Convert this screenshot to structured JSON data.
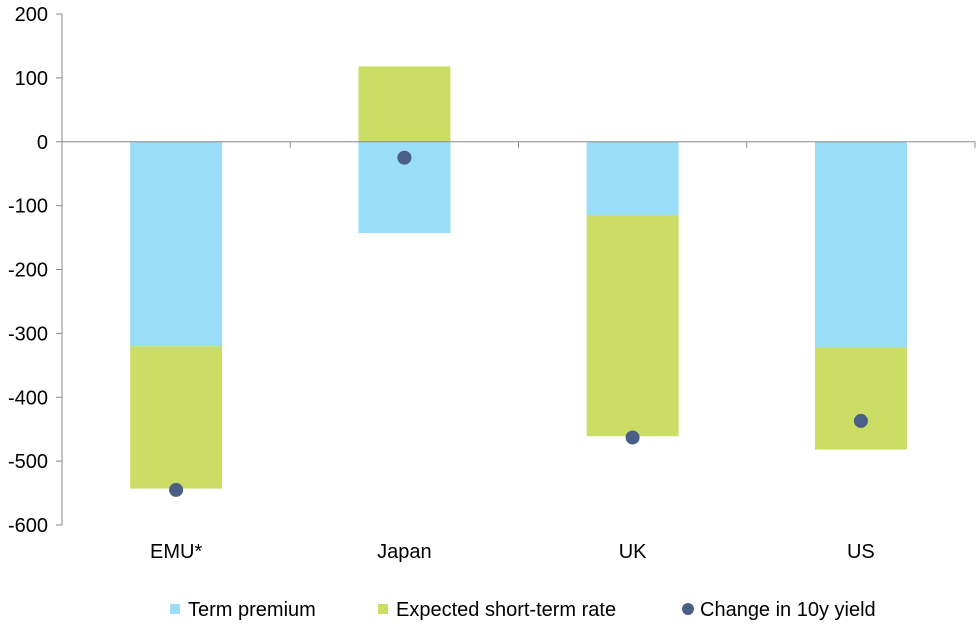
{
  "chart_data": {
    "type": "bar",
    "stacked": true,
    "categories": [
      "EMU*",
      "Japan",
      "UK",
      "US"
    ],
    "series": [
      {
        "name": "Term premium",
        "kind": "bar",
        "color": "#99DDF8",
        "values": [
          -320,
          -143,
          -115,
          -322
        ]
      },
      {
        "name": "Expected short-term rate",
        "kind": "bar",
        "color": "#CCDD66",
        "values": [
          -223,
          118,
          -346,
          -160
        ]
      },
      {
        "name": "Change in 10y yield",
        "kind": "marker",
        "color": "#4A5F85",
        "values": [
          -545,
          -25,
          -463,
          -437
        ]
      }
    ],
    "ylim": [
      -600,
      200
    ],
    "yticks": [
      200,
      100,
      0,
      -100,
      -200,
      -300,
      -400,
      -500,
      -600
    ],
    "title": "",
    "xlabel": "",
    "ylabel": "",
    "grid": false,
    "legend_position": "bottom"
  }
}
